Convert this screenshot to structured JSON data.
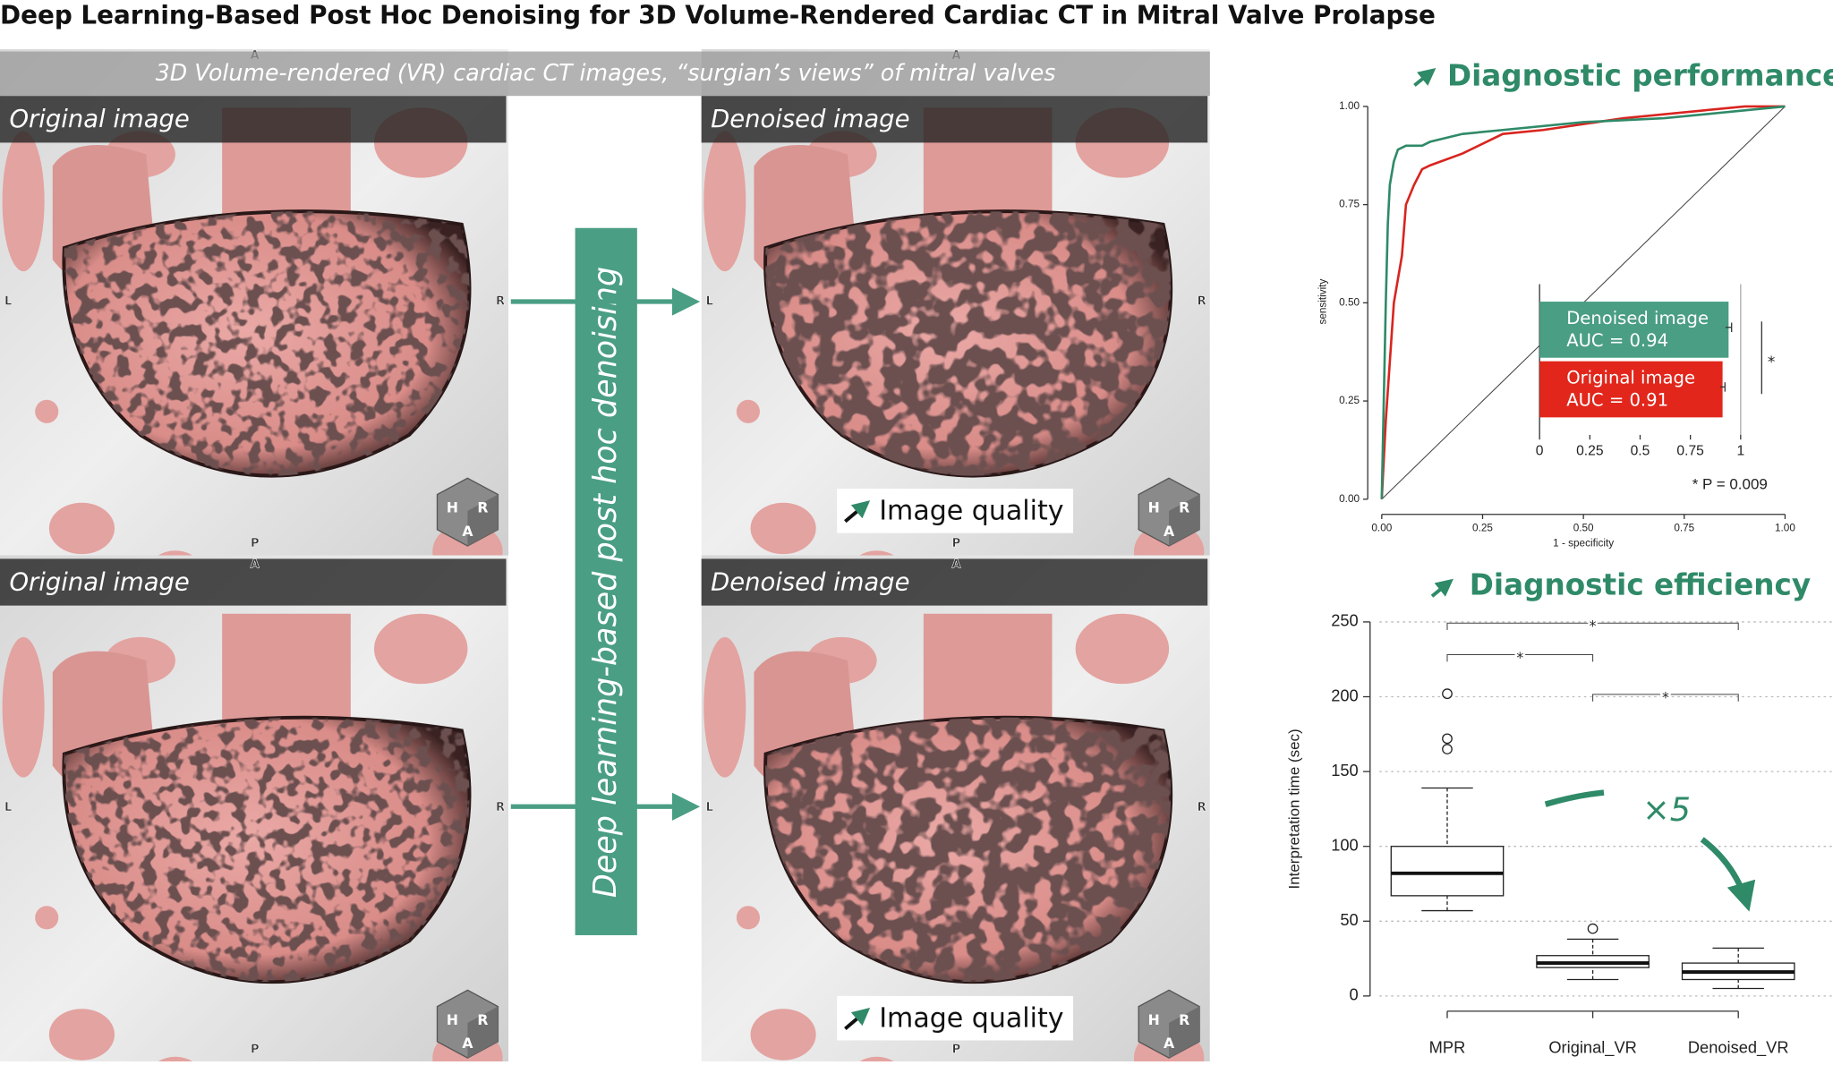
{
  "title": "Deep Learning-Based Post Hoc Denoising for 3D Volume-Rendered Cardiac CT in Mitral Valve Prolapse",
  "images": {
    "banner": "3D Volume-rendered (VR) cardiac CT images, “surgian’s views” of mitral valves",
    "method": "Deep learning-based post hoc denoising",
    "panels": [
      {
        "label": "Original image",
        "orientation": [
          "A",
          "L",
          "R",
          "P"
        ],
        "cube": [
          "H",
          "R",
          "A"
        ]
      },
      {
        "label": "Denoised image",
        "orientation": [
          "A",
          "L",
          "R",
          "P"
        ],
        "cube": [
          "H",
          "R",
          "A"
        ],
        "quality": "Image quality"
      },
      {
        "label": "Original image",
        "orientation": [
          "A",
          "L",
          "R",
          "P"
        ],
        "cube": [
          "H",
          "R",
          "A"
        ]
      },
      {
        "label": "Denoised image",
        "orientation": [
          "A",
          "L",
          "R",
          "P"
        ],
        "cube": [
          "H",
          "R",
          "A"
        ],
        "quality": "Image quality"
      }
    ]
  },
  "chart_data": [
    {
      "type": "line",
      "title": "Diagnostic performance",
      "xlabel": "1 - specificity",
      "ylabel": "sensitivity",
      "xlim": [
        0,
        1
      ],
      "ylim": [
        0,
        1
      ],
      "xticks": [
        {
          "value": 0,
          "label": "0.00"
        },
        {
          "value": 0.25,
          "label": "0.25"
        },
        {
          "value": 0.5,
          "label": "0.50"
        },
        {
          "value": 0.75,
          "label": "0.75"
        },
        {
          "value": 1,
          "label": "1.00"
        }
      ],
      "yticks": [
        {
          "value": 0,
          "label": "0.00"
        },
        {
          "value": 0.25,
          "label": "0.25"
        },
        {
          "value": 0.5,
          "label": "0.50"
        },
        {
          "value": 0.75,
          "label": "0.75"
        },
        {
          "value": 1,
          "label": "1.00"
        }
      ],
      "series": [
        {
          "name": "Denoised image",
          "color": "#2f8a68",
          "x": [
            0,
            0.01,
            0.015,
            0.02,
            0.03,
            0.04,
            0.06,
            0.1,
            0.12,
            0.2,
            0.3,
            0.5,
            0.7,
            0.9,
            1
          ],
          "values": [
            0,
            0.5,
            0.7,
            0.8,
            0.86,
            0.89,
            0.9,
            0.9,
            0.91,
            0.93,
            0.94,
            0.96,
            0.97,
            0.99,
            1
          ]
        },
        {
          "name": "Original image",
          "color": "#d8251f",
          "x": [
            0,
            0.01,
            0.02,
            0.03,
            0.05,
            0.06,
            0.08,
            0.1,
            0.12,
            0.2,
            0.3,
            0.4,
            0.6,
            0.8,
            0.9,
            1
          ],
          "values": [
            0,
            0.2,
            0.35,
            0.5,
            0.62,
            0.75,
            0.8,
            0.84,
            0.85,
            0.88,
            0.93,
            0.94,
            0.97,
            0.99,
            1,
            1
          ]
        }
      ]
    },
    {
      "type": "hbar",
      "categories": [
        "Denoised image",
        "Original image"
      ],
      "values": [
        0.94,
        0.91
      ],
      "value_labels": [
        "AUC = 0.94",
        "AUC = 0.91"
      ],
      "errors": [
        0.015,
        0.012
      ],
      "colors": [
        "#4a9e83",
        "#e2261b"
      ],
      "xlim": [
        0,
        1
      ],
      "xticks": [
        0,
        0.25,
        0.5,
        0.75,
        1
      ],
      "annotations": [
        "*",
        "* P = 0.009"
      ]
    },
    {
      "type": "box",
      "title": "Diagnostic efficiency",
      "ylabel": "Interpretation time (sec)",
      "categories": [
        "MPR",
        "Original_VR",
        "Denoised_VR"
      ],
      "ylim": [
        0,
        250
      ],
      "yticks": [
        0,
        50,
        100,
        150,
        200,
        250
      ],
      "boxes": [
        {
          "low": 57,
          "q1": 67,
          "median": 82,
          "q3": 100,
          "high": 139,
          "outliers": [
            165,
            172,
            202
          ]
        },
        {
          "low": 11,
          "q1": 19,
          "median": 22,
          "q3": 27,
          "high": 38,
          "outliers": [
            45
          ]
        },
        {
          "low": 5,
          "q1": 11,
          "median": 16,
          "q3": 22,
          "high": 32,
          "outliers": []
        }
      ],
      "annotations": [
        "*",
        "*",
        "*",
        "×5"
      ]
    }
  ]
}
